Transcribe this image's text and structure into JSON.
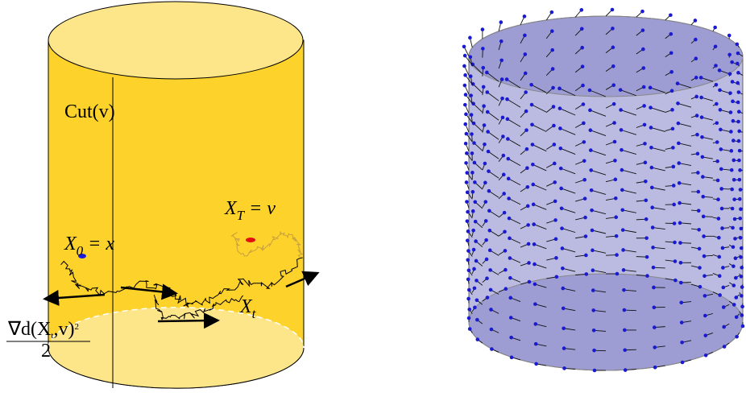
{
  "left": {
    "cut_label": "Cut(v)",
    "target": {
      "base": "X",
      "sub": "T",
      "rest": "= v"
    },
    "start": {
      "base": "X",
      "sub": "0",
      "rest": "= x"
    },
    "path": {
      "base": "X",
      "sub": "t"
    },
    "gradient": {
      "numerator_a": "∇d(X",
      "numerator_sub": "t",
      "numerator_b": ",v)",
      "numerator_sup": "2",
      "denominator": "2"
    }
  }
}
